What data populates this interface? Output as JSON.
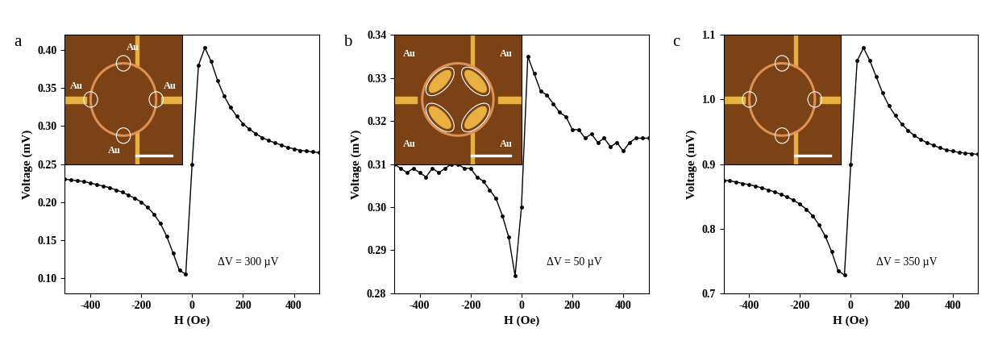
{
  "chart_data": [
    {
      "type": "line",
      "title": "a",
      "x_label": "H (Oe)",
      "y_label": "Voltage (mV)",
      "annotations": [
        "ΔV = 300 µV"
      ],
      "inset_labels": [
        "Au",
        "Au",
        "Au",
        "Au"
      ],
      "color": "#000000",
      "marker": "o",
      "line_style": "solid",
      "x": [
        -500,
        -475,
        -450,
        -425,
        -400,
        -375,
        -350,
        -325,
        -300,
        -275,
        -250,
        -225,
        -200,
        -175,
        -150,
        -125,
        -100,
        -75,
        -50,
        -25,
        0,
        25,
        50,
        75,
        100,
        125,
        150,
        175,
        200,
        225,
        250,
        275,
        300,
        325,
        350,
        375,
        400,
        425,
        450,
        475,
        500
      ],
      "values": [
        0.23,
        0.229,
        0.228,
        0.227,
        0.225,
        0.223,
        0.221,
        0.219,
        0.216,
        0.213,
        0.209,
        0.205,
        0.2,
        0.193,
        0.184,
        0.172,
        0.155,
        0.133,
        0.11,
        0.105,
        0.25,
        0.38,
        0.403,
        0.385,
        0.36,
        0.34,
        0.325,
        0.313,
        0.303,
        0.296,
        0.29,
        0.285,
        0.281,
        0.278,
        0.275,
        0.272,
        0.27,
        0.268,
        0.267,
        0.266,
        0.265
      ],
      "xlim": [
        -500,
        500
      ],
      "xticks": [
        -400,
        -200,
        0,
        200,
        400
      ],
      "ylim": [
        0.08,
        0.42
      ],
      "yticks": [
        {
          "value": 0.1,
          "label": "0.10"
        },
        {
          "value": 0.15,
          "label": "0.15"
        },
        {
          "value": 0.2,
          "label": "0.20"
        },
        {
          "value": 0.25,
          "label": "0.25"
        },
        {
          "value": 0.3,
          "label": "0.30"
        },
        {
          "value": 0.35,
          "label": "0.35"
        },
        {
          "value": 0.4,
          "label": "0.40"
        }
      ]
    },
    {
      "type": "line",
      "title": "b",
      "x_label": "H (Oe)",
      "y_label": "Voltage (mV)",
      "annotations": [
        "ΔV = 50 µV"
      ],
      "inset_labels": [
        "Au",
        "Au",
        "Au",
        "Au"
      ],
      "color": "#000000",
      "marker": "o",
      "line_style": "solid",
      "x": [
        -500,
        -475,
        -450,
        -425,
        -400,
        -375,
        -350,
        -325,
        -300,
        -275,
        -250,
        -225,
        -200,
        -175,
        -150,
        -125,
        -100,
        -75,
        -50,
        -25,
        0,
        25,
        50,
        75,
        100,
        125,
        150,
        175,
        200,
        225,
        250,
        275,
        300,
        325,
        350,
        375,
        400,
        425,
        450,
        475,
        500
      ],
      "values": [
        0.31,
        0.309,
        0.308,
        0.309,
        0.308,
        0.307,
        0.309,
        0.308,
        0.309,
        0.31,
        0.31,
        0.309,
        0.309,
        0.307,
        0.306,
        0.304,
        0.302,
        0.298,
        0.293,
        0.284,
        0.3,
        0.335,
        0.331,
        0.327,
        0.326,
        0.324,
        0.322,
        0.321,
        0.318,
        0.318,
        0.316,
        0.317,
        0.315,
        0.316,
        0.314,
        0.315,
        0.313,
        0.315,
        0.316,
        0.316,
        0.316
      ],
      "xlim": [
        -500,
        500
      ],
      "xticks": [
        -400,
        -200,
        0,
        200,
        400
      ],
      "ylim": [
        0.28,
        0.34
      ],
      "yticks": [
        {
          "value": 0.28,
          "label": "0.28"
        },
        {
          "value": 0.29,
          "label": "0.29"
        },
        {
          "value": 0.3,
          "label": "0.30"
        },
        {
          "value": 0.31,
          "label": "0.31"
        },
        {
          "value": 0.32,
          "label": "0.32"
        },
        {
          "value": 0.33,
          "label": "0.33"
        },
        {
          "value": 0.34,
          "label": "0.34"
        }
      ]
    },
    {
      "type": "line",
      "title": "c",
      "x_label": "H (Oe)",
      "y_label": "Voltage (mV)",
      "annotations": [
        "ΔV = 350 µV"
      ],
      "inset_labels": [],
      "color": "#000000",
      "marker": "o",
      "line_style": "solid",
      "x": [
        -500,
        -475,
        -450,
        -425,
        -400,
        -375,
        -350,
        -325,
        -300,
        -275,
        -250,
        -225,
        -200,
        -175,
        -150,
        -125,
        -100,
        -75,
        -50,
        -25,
        0,
        25,
        50,
        75,
        100,
        125,
        150,
        175,
        200,
        225,
        250,
        275,
        300,
        325,
        350,
        375,
        400,
        425,
        450,
        475,
        500
      ],
      "values": [
        0.875,
        0.874,
        0.872,
        0.87,
        0.868,
        0.866,
        0.863,
        0.86,
        0.857,
        0.853,
        0.849,
        0.844,
        0.838,
        0.83,
        0.82,
        0.806,
        0.788,
        0.764,
        0.735,
        0.728,
        0.9,
        1.06,
        1.08,
        1.06,
        1.035,
        1.01,
        0.99,
        0.975,
        0.962,
        0.952,
        0.944,
        0.938,
        0.933,
        0.929,
        0.925,
        0.922,
        0.92,
        0.918,
        0.917,
        0.916,
        0.915
      ],
      "xlim": [
        -500,
        500
      ],
      "xticks": [
        -400,
        -200,
        0,
        200,
        400
      ],
      "ylim": [
        0.7,
        1.1
      ],
      "yticks": [
        {
          "value": 0.7,
          "label": "0.7"
        },
        {
          "value": 0.8,
          "label": "0.8"
        },
        {
          "value": 0.9,
          "label": "0.9"
        },
        {
          "value": 1.0,
          "label": "1.0"
        },
        {
          "value": 1.1,
          "label": "1.1"
        }
      ]
    }
  ]
}
